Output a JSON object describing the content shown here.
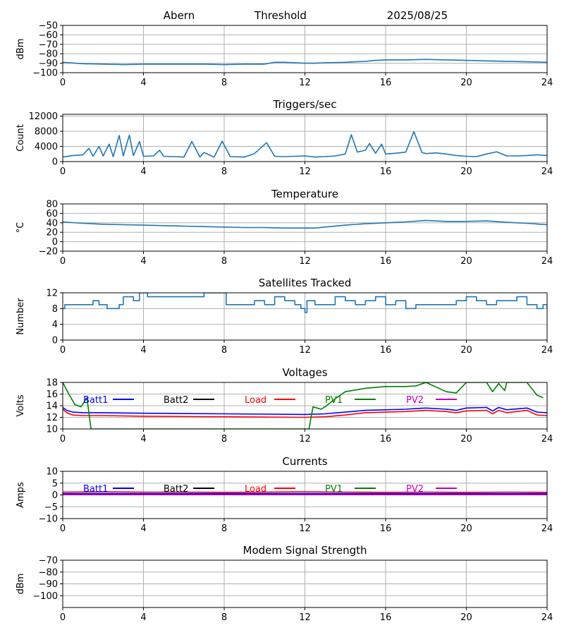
{
  "header": {
    "site": "Abern",
    "label": "Threshold",
    "date": "2025/08/25"
  },
  "colors": {
    "line": "#1f77b4",
    "grid": "#b0b0b0",
    "Batt1": "#0000ff",
    "Batt2": "#000000",
    "Load": "#ff0000",
    "PV1": "#008000",
    "PV2": "#bf00bf"
  },
  "legend_labels": [
    "Batt1",
    "Batt2",
    "Load",
    "PV1",
    "PV2"
  ],
  "chart_data": [
    {
      "id": "threshold",
      "type": "line",
      "title": "",
      "xlabel": "",
      "ylabel": "dBm",
      "xlim": [
        0,
        24
      ],
      "ylim": [
        -100,
        -50
      ],
      "xticks": [
        0,
        4,
        8,
        12,
        16,
        20,
        24
      ],
      "yticks": [
        -100,
        -90,
        -80,
        -70,
        -60,
        -50
      ],
      "grid": true,
      "series": [
        {
          "color": "#1f77b4",
          "x": [
            0,
            1,
            2,
            3,
            4,
            5,
            6,
            7,
            8,
            9,
            10,
            10.5,
            11,
            12,
            12.5,
            13,
            14,
            15,
            15.5,
            16,
            17,
            18,
            19,
            20,
            21,
            22,
            23,
            24
          ],
          "y": [
            -89,
            -90.5,
            -91,
            -91.5,
            -91,
            -91,
            -91,
            -91,
            -91.5,
            -91,
            -91,
            -89,
            -89,
            -90,
            -90,
            -89.5,
            -89,
            -88,
            -87,
            -86.5,
            -86.5,
            -86,
            -86.5,
            -87,
            -87.5,
            -88,
            -88.5,
            -89
          ]
        }
      ]
    },
    {
      "id": "triggers",
      "type": "line",
      "title": "Triggers/sec",
      "xlabel": "",
      "ylabel": "Count",
      "xlim": [
        0,
        24
      ],
      "ylim": [
        0,
        12500
      ],
      "xticks": [
        0,
        4,
        8,
        12,
        16,
        20,
        24
      ],
      "yticks": [
        0,
        4000,
        8000,
        12000
      ],
      "grid": true,
      "series": [
        {
          "color": "#1f77b4",
          "x": [
            0,
            0.5,
            1,
            1.3,
            1.5,
            1.8,
            2,
            2.3,
            2.5,
            2.8,
            3,
            3.3,
            3.5,
            3.8,
            4,
            4.5,
            4.8,
            5,
            5.5,
            6,
            6.4,
            6.8,
            7,
            7.5,
            7.9,
            8.3,
            9,
            9.5,
            10.1,
            10.5,
            11,
            11.5,
            12,
            12.5,
            13,
            13.5,
            14,
            14.3,
            14.6,
            15,
            15.2,
            15.5,
            15.8,
            16,
            16.5,
            17,
            17.4,
            17.8,
            18,
            18.5,
            19,
            19.5,
            20,
            20.5,
            21,
            21.5,
            22,
            22.5,
            23,
            23.5,
            24
          ],
          "y": [
            1200,
            1600,
            1800,
            3500,
            1400,
            4000,
            1500,
            4600,
            1300,
            6900,
            1500,
            7000,
            1600,
            5300,
            1400,
            1500,
            3000,
            1400,
            1300,
            1200,
            5300,
            1200,
            2400,
            1200,
            5400,
            1300,
            1200,
            2100,
            5000,
            1400,
            1300,
            1400,
            1500,
            1200,
            1300,
            1500,
            2000,
            7100,
            2500,
            3000,
            4800,
            2200,
            4600,
            2000,
            2200,
            2500,
            7900,
            2400,
            2100,
            2300,
            2000,
            1600,
            1400,
            1300,
            2000,
            2600,
            1500,
            1500,
            1600,
            1800,
            1600
          ]
        }
      ]
    },
    {
      "id": "temperature",
      "type": "line",
      "title": "Temperature",
      "xlabel": "",
      "ylabel": "°C",
      "xlim": [
        0,
        24
      ],
      "ylim": [
        -20,
        80
      ],
      "xticks": [
        0,
        4,
        8,
        12,
        16,
        20,
        24
      ],
      "yticks": [
        -20,
        0,
        20,
        40,
        60,
        80
      ],
      "grid": true,
      "series": [
        {
          "color": "#1f77b4",
          "x": [
            0,
            1,
            2,
            3,
            4,
            5,
            6,
            7,
            8,
            9,
            10,
            11,
            12,
            12.5,
            13,
            14,
            15,
            16,
            17,
            18,
            19,
            20,
            21,
            22,
            23,
            24
          ],
          "y": [
            42,
            39,
            37,
            36,
            35,
            34,
            33,
            32,
            31,
            30,
            30,
            29,
            29,
            29,
            31,
            35,
            38,
            40,
            42,
            45,
            43,
            43,
            44,
            41,
            39,
            36
          ]
        }
      ]
    },
    {
      "id": "satellites",
      "type": "line",
      "title": "Satellites Tracked",
      "xlabel": "",
      "ylabel": "Number",
      "xlim": [
        0,
        24
      ],
      "ylim": [
        0,
        12
      ],
      "xticks": [
        0,
        4,
        8,
        12,
        16,
        20,
        24
      ],
      "yticks": [
        0,
        4,
        8,
        12
      ],
      "grid": true,
      "series": [
        {
          "color": "#1f77b4",
          "x": [
            0,
            0.1,
            1.2,
            1.5,
            1.8,
            2.2,
            2.8,
            3,
            3.5,
            3.8,
            4.2,
            5,
            6,
            6.5,
            7,
            7.5,
            8.1,
            8.7,
            9.5,
            10,
            10.5,
            11,
            11.5,
            11.8,
            12,
            12.1,
            12.5,
            13,
            13.5,
            14,
            14.5,
            15,
            15.5,
            16,
            16.5,
            17,
            17.5,
            18,
            18.5,
            19,
            19.5,
            20,
            20.5,
            21,
            21.5,
            22,
            22.5,
            23,
            23.5,
            23.8,
            24
          ],
          "y": [
            8,
            9,
            9,
            10,
            9,
            8,
            9,
            11,
            10,
            12,
            11,
            11,
            11,
            11,
            12,
            12,
            9,
            9,
            10,
            9,
            11,
            10,
            9,
            8,
            7,
            10,
            9,
            9,
            11,
            10,
            9,
            10,
            11,
            9,
            10,
            8,
            9,
            9,
            9,
            9,
            10,
            11,
            10,
            9,
            10,
            10,
            11,
            9,
            8,
            9,
            8
          ]
        }
      ]
    },
    {
      "id": "voltages",
      "type": "line",
      "title": "Voltages",
      "xlabel": "",
      "ylabel": "Volts",
      "xlim": [
        0,
        24
      ],
      "ylim": [
        10,
        18
      ],
      "xticks": [
        0,
        4,
        8,
        12,
        16,
        20,
        24
      ],
      "yticks": [
        10,
        12,
        14,
        16,
        18
      ],
      "grid": true,
      "legend": "top",
      "series": [
        {
          "name": "Batt1",
          "color": "#0000ff",
          "x": [
            0,
            0.2,
            0.5,
            1,
            2,
            4,
            8,
            12,
            13,
            14,
            15,
            16,
            17,
            17.5,
            18,
            19,
            19.5,
            20,
            21,
            21.3,
            21.6,
            22,
            23,
            23.5,
            24
          ],
          "y": [
            13.7,
            13.2,
            12.9,
            12.8,
            12.8,
            12.7,
            12.6,
            12.5,
            12.6,
            12.9,
            13.2,
            13.3,
            13.4,
            13.5,
            13.6,
            13.4,
            13.2,
            13.6,
            13.7,
            13.1,
            13.7,
            13.3,
            13.6,
            12.9,
            12.8
          ]
        },
        {
          "name": "Load",
          "color": "#ff0000",
          "x": [
            0,
            0.2,
            0.5,
            1,
            2,
            4,
            8,
            12,
            13,
            14,
            15,
            16,
            17,
            17.5,
            18,
            19,
            19.5,
            20,
            21,
            21.3,
            21.6,
            22,
            23,
            23.5,
            24
          ],
          "y": [
            13.4,
            12.8,
            12.4,
            12.3,
            12.3,
            12.2,
            12.1,
            12.0,
            12.1,
            12.4,
            12.8,
            12.9,
            13.0,
            13.1,
            13.2,
            13.0,
            12.8,
            13.1,
            13.2,
            12.6,
            13.2,
            12.8,
            13.2,
            12.4,
            12.3
          ]
        },
        {
          "name": "PV1",
          "color": "#008000",
          "x": [
            0,
            0.3,
            0.6,
            0.9,
            1.2,
            1.4,
            12.2,
            12.4,
            12.6,
            12.8,
            13,
            13.5,
            14,
            15,
            16,
            17,
            17.5,
            18,
            19,
            19.5,
            20,
            21,
            21.3,
            21.6,
            21.9,
            22,
            23,
            23.5,
            23.8
          ],
          "y": [
            18,
            16,
            14.2,
            13.8,
            15.4,
            10,
            10,
            13.8,
            13.6,
            13.4,
            13.8,
            15.2,
            16.4,
            17.0,
            17.3,
            17.3,
            17.4,
            18,
            16.4,
            16.2,
            18,
            18,
            16.4,
            17.8,
            16.6,
            18,
            18,
            15.8,
            15.4
          ]
        },
        {
          "name": "PV2",
          "color": "#bf00bf",
          "x": [],
          "y": []
        },
        {
          "name": "Batt2",
          "color": "#000000",
          "x": [],
          "y": []
        }
      ]
    },
    {
      "id": "currents",
      "type": "line",
      "title": "Currents",
      "xlabel": "",
      "ylabel": "Amps",
      "xlim": [
        0,
        24
      ],
      "ylim": [
        -10,
        10
      ],
      "xticks": [
        0,
        4,
        8,
        12,
        16,
        20,
        24
      ],
      "yticks": [
        -10,
        -5,
        0,
        5,
        10
      ],
      "grid": true,
      "legend": "top",
      "series": [
        {
          "name": "PV1",
          "color": "#008000",
          "x": [
            0,
            24
          ],
          "y": [
            0.4,
            0.4
          ]
        },
        {
          "name": "PV2",
          "color": "#bf00bf",
          "x": [
            0,
            24
          ],
          "y": [
            0.1,
            0.1
          ]
        },
        {
          "name": "Batt1",
          "color": "#0000ff",
          "x": [
            0,
            24
          ],
          "y": [
            0.6,
            0.6
          ]
        },
        {
          "name": "Load",
          "color": "#ff0000",
          "x": [
            0,
            2,
            4,
            6,
            8,
            10,
            12,
            14,
            16,
            18,
            20,
            22,
            24
          ],
          "y": [
            1.2,
            1.3,
            1.2,
            1.2,
            1.1,
            1.2,
            1.3,
            1.2,
            1.1,
            1.2,
            1.1,
            1.2,
            1.1
          ]
        },
        {
          "name": "Batt2",
          "color": "#000000",
          "x": [],
          "y": []
        }
      ]
    },
    {
      "id": "modem",
      "type": "line",
      "title": "Modem Signal Strength",
      "xlabel": "",
      "ylabel": "dBm",
      "xlim": [
        0,
        24
      ],
      "ylim": [
        -110,
        -70
      ],
      "xticks": [
        0,
        4,
        8,
        12,
        16,
        20,
        24
      ],
      "yticks": [
        -100,
        -90,
        -80,
        -70
      ],
      "grid": true,
      "series": []
    }
  ]
}
